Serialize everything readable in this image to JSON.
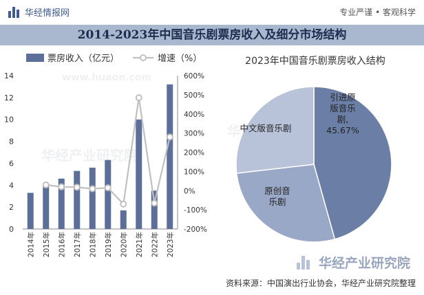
{
  "header": {
    "brand": "华经情报网",
    "tagline": "专业严谨 • 客观科学"
  },
  "title": "2014-2023年中国音乐剧票房收入及细分市场结构",
  "footer": {
    "source": "资料来源：中国演出行业协会，华经产业研究院整理"
  },
  "watermark": {
    "brand": "华经产业研究院",
    "url": "www.huaon.com"
  },
  "colors": {
    "bar": "#5b6f98",
    "line": "#c0c0c0",
    "title_band": "#a9b7cf",
    "pie_intro": "#6b7fa6",
    "pie_original": "#9aa8c7",
    "pie_chinese": "#b8c2d9"
  },
  "chart_data": [
    {
      "type": "bar",
      "legend": [
        "票房收入（亿元）",
        "增速（%）"
      ],
      "legend_placement": "top-left",
      "categories": [
        "2014年",
        "2015年",
        "2016年",
        "2017年",
        "2018年",
        "2019年",
        "2020年",
        "2021年",
        "2022年",
        "2023年"
      ],
      "series": [
        {
          "name": "票房收入（亿元）",
          "type": "bar",
          "axis": "left",
          "values": [
            3.3,
            4.0,
            4.6,
            5.3,
            5.6,
            6.3,
            1.7,
            10.0,
            3.5,
            13.2
          ]
        },
        {
          "name": "增速（%）",
          "type": "line",
          "axis": "right",
          "values": [
            null,
            30,
            20,
            18,
            10,
            15,
            -70,
            485,
            -65,
            280
          ]
        }
      ],
      "ylim": [
        0,
        14
      ],
      "yticks": [
        "0",
        "2",
        "4",
        "6",
        "8",
        "10",
        "12",
        "14"
      ],
      "y2lim": [
        -200,
        600
      ],
      "y2ticks": [
        "-200%",
        "-100%",
        "0%",
        "100%",
        "200%",
        "300%",
        "400%",
        "500%",
        "600%"
      ]
    },
    {
      "type": "pie",
      "title": "2023年中国音乐剧票房收入结构",
      "slices": [
        {
          "label": "引进原版音乐剧",
          "display": "引进原\n版音乐\n剧,\n45.67%",
          "value": 45.67
        },
        {
          "label": "原创音乐剧",
          "display": "原创音\n乐剧",
          "value": 27.5
        },
        {
          "label": "中文版音乐剧",
          "display": "中文版音乐剧",
          "value": 26.83
        }
      ]
    }
  ]
}
